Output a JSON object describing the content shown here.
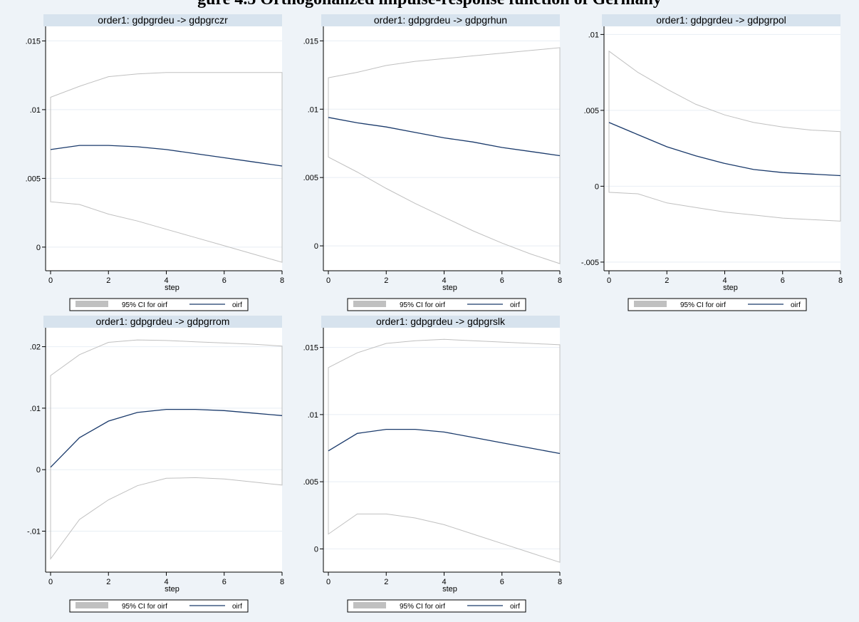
{
  "page_title": "gure 4.5 Orthogonalized impulse-response function of Germany",
  "chart_data": [
    {
      "type": "area",
      "title": "order1: gdpgrdeu -> gdpgrczr",
      "xlabel": "step",
      "ylabel": "",
      "x": [
        0,
        1,
        2,
        3,
        4,
        5,
        6,
        7,
        8
      ],
      "xticks": [
        0,
        2,
        4,
        6,
        8
      ],
      "xtick_labels": [
        "0",
        "2",
        "4",
        "6",
        "8"
      ],
      "yticks": [
        0,
        0.005,
        0.01,
        0.015
      ],
      "ytick_labels": [
        "0",
        ".005",
        ".01",
        ".015"
      ],
      "ylim": [
        -0.0012,
        0.0158
      ],
      "series": [
        {
          "name": "95% CI for oirf",
          "role": "ci",
          "lower": [
            0.0033,
            0.0031,
            0.0024,
            0.0019,
            0.0013,
            0.0007,
            0.0001,
            -0.0005,
            -0.0011
          ],
          "upper": [
            0.0109,
            0.0117,
            0.0124,
            0.0126,
            0.0127,
            0.0127,
            0.0127,
            0.0127,
            0.0127
          ]
        },
        {
          "name": "oirf",
          "role": "line",
          "values": [
            0.0071,
            0.0074,
            0.0074,
            0.0073,
            0.0071,
            0.0068,
            0.0065,
            0.0062,
            0.0059
          ]
        }
      ],
      "legend": {
        "position": "bottom",
        "entries": [
          "95% CI for oirf",
          "oirf"
        ]
      },
      "colors": {
        "band": "#c0c0c0",
        "line": "#1a3a6b"
      },
      "grid": true
    },
    {
      "type": "area",
      "title": "order1: gdpgrdeu -> gdpgrhun",
      "xlabel": "step",
      "ylabel": "",
      "x": [
        0,
        1,
        2,
        3,
        4,
        5,
        6,
        7,
        8
      ],
      "xticks": [
        0,
        2,
        4,
        6,
        8
      ],
      "xtick_labels": [
        "0",
        "2",
        "4",
        "6",
        "8"
      ],
      "yticks": [
        0,
        0.005,
        0.01,
        0.015
      ],
      "ytick_labels": [
        "0",
        ".005",
        ".01",
        ".015"
      ],
      "ylim": [
        -0.0013,
        0.0158
      ],
      "series": [
        {
          "name": "95% CI for oirf",
          "role": "ci",
          "lower": [
            0.0065,
            0.0054,
            0.0042,
            0.0031,
            0.0021,
            0.0011,
            0.0002,
            -0.0006,
            -0.0013
          ],
          "upper": [
            0.0123,
            0.0127,
            0.0132,
            0.0135,
            0.0137,
            0.0139,
            0.0141,
            0.0143,
            0.0145
          ]
        },
        {
          "name": "oirf",
          "role": "line",
          "values": [
            0.0094,
            0.009,
            0.0087,
            0.0083,
            0.0079,
            0.0076,
            0.0072,
            0.0069,
            0.0066
          ]
        }
      ],
      "legend": {
        "position": "bottom",
        "entries": [
          "95% CI for oirf",
          "oirf"
        ]
      },
      "colors": {
        "band": "#c0c0c0",
        "line": "#1a3a6b"
      },
      "grid": true
    },
    {
      "type": "area",
      "title": "order1: gdpgrdeu -> gdpgrpol",
      "xlabel": "step",
      "ylabel": "",
      "x": [
        0,
        1,
        2,
        3,
        4,
        5,
        6,
        7,
        8
      ],
      "xticks": [
        0,
        2,
        4,
        6,
        8
      ],
      "xtick_labels": [
        "0",
        "2",
        "4",
        "6",
        "8"
      ],
      "yticks": [
        -0.005,
        0,
        0.005,
        0.01
      ],
      "ytick_labels": [
        "-.005",
        "0",
        ".005",
        ".01"
      ],
      "ylim": [
        -0.0051,
        0.0103
      ],
      "series": [
        {
          "name": "95% CI for oirf",
          "role": "ci",
          "lower": [
            -0.0004,
            -0.0005,
            -0.0011,
            -0.0014,
            -0.0017,
            -0.0019,
            -0.0021,
            -0.0022,
            -0.0023
          ],
          "upper": [
            0.0089,
            0.0075,
            0.0064,
            0.0054,
            0.0047,
            0.0042,
            0.0039,
            0.0037,
            0.0036
          ]
        },
        {
          "name": "oirf",
          "role": "line",
          "values": [
            0.0042,
            0.0034,
            0.0026,
            0.002,
            0.0015,
            0.0011,
            0.0009,
            0.0008,
            0.0007
          ]
        }
      ],
      "legend": {
        "position": "bottom",
        "entries": [
          "95% CI for oirf",
          "oirf"
        ]
      },
      "colors": {
        "band": "#c0c0c0",
        "line": "#1a3a6b"
      },
      "grid": true
    },
    {
      "type": "area",
      "title": "order1: gdpgrdeu -> gdpgrrom",
      "xlabel": "step",
      "ylabel": "",
      "x": [
        0,
        1,
        2,
        3,
        4,
        5,
        6,
        7,
        8
      ],
      "xticks": [
        0,
        2,
        4,
        6,
        8
      ],
      "xtick_labels": [
        "0",
        "2",
        "4",
        "6",
        "8"
      ],
      "yticks": [
        -0.01,
        0,
        0.01,
        0.02
      ],
      "ytick_labels": [
        "-.01",
        "0",
        ".01",
        ".02"
      ],
      "ylim": [
        -0.0155,
        0.0225
      ],
      "series": [
        {
          "name": "95% CI for oirf",
          "role": "ci",
          "lower": [
            -0.0145,
            -0.0081,
            -0.0049,
            -0.0026,
            -0.0014,
            -0.0013,
            -0.0015,
            -0.002,
            -0.0025
          ],
          "upper": [
            0.0153,
            0.0187,
            0.0207,
            0.0211,
            0.021,
            0.0208,
            0.0206,
            0.0204,
            0.0201
          ]
        },
        {
          "name": "oirf",
          "role": "line",
          "values": [
            0.0004,
            0.0052,
            0.0079,
            0.0093,
            0.0098,
            0.0098,
            0.0096,
            0.0092,
            0.0088
          ]
        }
      ],
      "legend": {
        "position": "bottom",
        "entries": [
          "95% CI for oirf",
          "oirf"
        ]
      },
      "colors": {
        "band": "#c0c0c0",
        "line": "#1a3a6b"
      },
      "grid": true
    },
    {
      "type": "area",
      "title": "order1: gdpgrdeu -> gdpgrslk",
      "xlabel": "step",
      "ylabel": "",
      "x": [
        0,
        1,
        2,
        3,
        4,
        5,
        6,
        7,
        8
      ],
      "xticks": [
        0,
        2,
        4,
        6,
        8
      ],
      "xtick_labels": [
        "0",
        "2",
        "4",
        "6",
        "8"
      ],
      "yticks": [
        0,
        0.005,
        0.01,
        0.015
      ],
      "ytick_labels": [
        "0",
        ".005",
        ".01",
        ".015"
      ],
      "ylim": [
        -0.0012,
        0.0162
      ],
      "series": [
        {
          "name": "95% CI for oirf",
          "role": "ci",
          "lower": [
            0.0011,
            0.0026,
            0.0026,
            0.0023,
            0.0018,
            0.0011,
            0.0004,
            -0.0003,
            -0.001
          ],
          "upper": [
            0.0135,
            0.0146,
            0.0153,
            0.0155,
            0.0156,
            0.0155,
            0.0154,
            0.0153,
            0.0152
          ]
        },
        {
          "name": "oirf",
          "role": "line",
          "values": [
            0.0073,
            0.0086,
            0.0089,
            0.0089,
            0.0087,
            0.0083,
            0.0079,
            0.0075,
            0.0071
          ]
        }
      ],
      "legend": {
        "position": "bottom",
        "entries": [
          "95% CI for oirf",
          "oirf"
        ]
      },
      "colors": {
        "band": "#c0c0c0",
        "line": "#1a3a6b"
      },
      "grid": true
    }
  ]
}
